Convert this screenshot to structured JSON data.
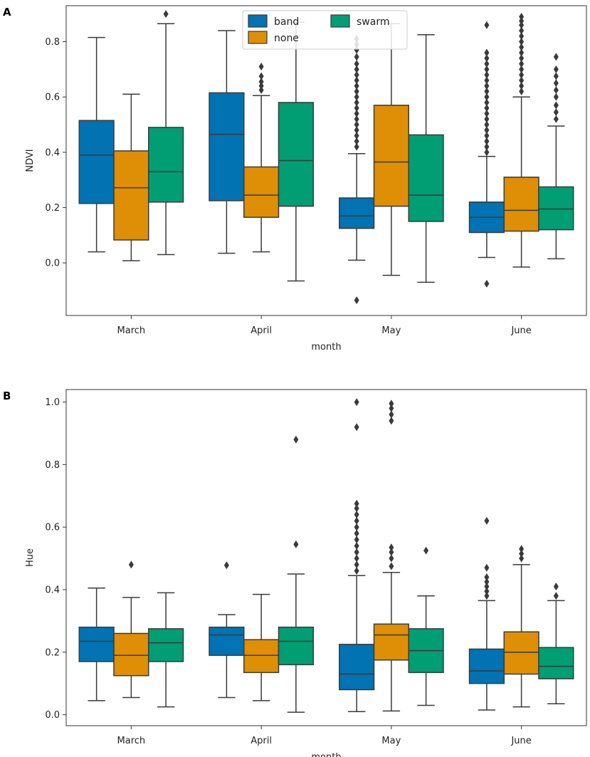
{
  "chart_data": [
    {
      "panel": "A",
      "type": "box",
      "xlabel": "month",
      "ylabel": "NDVI",
      "categories": [
        "March",
        "April",
        "May",
        "June"
      ],
      "ylim": [
        -0.19,
        0.93
      ],
      "yticks": [
        0.0,
        0.2,
        0.4,
        0.6,
        0.8
      ],
      "ytick_labels": [
        "0.0",
        "0.2",
        "0.4",
        "0.6",
        "0.8"
      ],
      "legend": {
        "position": "top-center",
        "entries": [
          "band",
          "none",
          "swarm"
        ]
      },
      "series": [
        {
          "name": "band",
          "color": "#0173b2",
          "boxes": [
            {
              "min": 0.04,
              "q1": 0.215,
              "median": 0.39,
              "q3": 0.515,
              "max": 0.815,
              "outliers": []
            },
            {
              "min": 0.035,
              "q1": 0.225,
              "median": 0.465,
              "q3": 0.615,
              "max": 0.84,
              "outliers": []
            },
            {
              "min": 0.01,
              "q1": 0.125,
              "median": 0.17,
              "q3": 0.235,
              "max": 0.395,
              "outliers": [
                -0.135,
                0.42,
                0.44,
                0.46,
                0.48,
                0.5,
                0.52,
                0.54,
                0.56,
                0.58,
                0.6,
                0.62,
                0.64,
                0.66,
                0.68,
                0.7,
                0.72,
                0.745,
                0.77,
                0.79,
                0.81
              ]
            },
            {
              "min": 0.02,
              "q1": 0.11,
              "median": 0.165,
              "q3": 0.22,
              "max": 0.385,
              "outliers": [
                -0.075,
                0.4,
                0.42,
                0.44,
                0.46,
                0.48,
                0.5,
                0.52,
                0.54,
                0.56,
                0.58,
                0.6,
                0.62,
                0.64,
                0.66,
                0.68,
                0.7,
                0.72,
                0.74,
                0.76,
                0.86
              ]
            }
          ]
        },
        {
          "name": "none",
          "color": "#de8f05",
          "boxes": [
            {
              "min": 0.008,
              "q1": 0.083,
              "median": 0.272,
              "q3": 0.405,
              "max": 0.61,
              "outliers": []
            },
            {
              "min": 0.04,
              "q1": 0.165,
              "median": 0.245,
              "q3": 0.347,
              "max": 0.605,
              "outliers": [
                0.625,
                0.64,
                0.655,
                0.675,
                0.71,
                0.82
              ]
            },
            {
              "min": -0.045,
              "q1": 0.205,
              "median": 0.365,
              "q3": 0.57,
              "max": 0.865,
              "outliers": []
            },
            {
              "min": -0.015,
              "q1": 0.115,
              "median": 0.19,
              "q3": 0.31,
              "max": 0.6,
              "outliers": [
                0.62,
                0.64,
                0.66,
                0.68,
                0.7,
                0.72,
                0.74,
                0.76,
                0.78,
                0.8,
                0.82,
                0.84,
                0.86,
                0.875,
                0.89
              ]
            }
          ]
        },
        {
          "name": "swarm",
          "color": "#029e73",
          "boxes": [
            {
              "min": 0.03,
              "q1": 0.22,
              "median": 0.33,
              "q3": 0.49,
              "max": 0.865,
              "outliers": [
                0.9
              ]
            },
            {
              "min": -0.065,
              "q1": 0.205,
              "median": 0.37,
              "q3": 0.58,
              "max": 0.87,
              "outliers": []
            },
            {
              "min": -0.07,
              "q1": 0.15,
              "median": 0.245,
              "q3": 0.463,
              "max": 0.825,
              "outliers": []
            },
            {
              "min": 0.015,
              "q1": 0.12,
              "median": 0.195,
              "q3": 0.275,
              "max": 0.495,
              "outliers": [
                0.52,
                0.545,
                0.57,
                0.6,
                0.625,
                0.65,
                0.675,
                0.7,
                0.745
              ]
            }
          ]
        }
      ]
    },
    {
      "panel": "B",
      "type": "box",
      "xlabel": "month",
      "ylabel": "Hue",
      "categories": [
        "March",
        "April",
        "May",
        "June"
      ],
      "ylim": [
        -0.035,
        1.04
      ],
      "yticks": [
        0.0,
        0.2,
        0.4,
        0.6,
        0.8,
        1.0
      ],
      "ytick_labels": [
        "0.0",
        "0.2",
        "0.4",
        "0.6",
        "0.8",
        "1.0"
      ],
      "series": [
        {
          "name": "band",
          "color": "#0173b2",
          "boxes": [
            {
              "min": 0.045,
              "q1": 0.17,
              "median": 0.235,
              "q3": 0.28,
              "max": 0.405,
              "outliers": []
            },
            {
              "min": 0.055,
              "q1": 0.19,
              "median": 0.255,
              "q3": 0.28,
              "max": 0.32,
              "outliers": [
                0.478
              ]
            },
            {
              "min": 0.01,
              "q1": 0.08,
              "median": 0.13,
              "q3": 0.225,
              "max": 0.445,
              "outliers": [
                0.46,
                0.48,
                0.5,
                0.52,
                0.54,
                0.56,
                0.58,
                0.6,
                0.62,
                0.64,
                0.66,
                0.675,
                0.92,
                1.0
              ]
            },
            {
              "min": 0.015,
              "q1": 0.1,
              "median": 0.14,
              "q3": 0.21,
              "max": 0.365,
              "outliers": [
                0.38,
                0.395,
                0.41,
                0.425,
                0.44,
                0.47,
                0.62
              ]
            }
          ]
        },
        {
          "name": "none",
          "color": "#de8f05",
          "boxes": [
            {
              "min": 0.055,
              "q1": 0.125,
              "median": 0.19,
              "q3": 0.26,
              "max": 0.375,
              "outliers": [
                0.48
              ]
            },
            {
              "min": 0.045,
              "q1": 0.135,
              "median": 0.19,
              "q3": 0.24,
              "max": 0.385,
              "outliers": []
            },
            {
              "min": 0.012,
              "q1": 0.175,
              "median": 0.255,
              "q3": 0.29,
              "max": 0.455,
              "outliers": [
                0.475,
                0.5,
                0.52,
                0.535,
                0.94,
                0.96,
                0.98,
                0.995
              ]
            },
            {
              "min": 0.025,
              "q1": 0.13,
              "median": 0.2,
              "q3": 0.265,
              "max": 0.48,
              "outliers": [
                0.5,
                0.515,
                0.53
              ]
            }
          ]
        },
        {
          "name": "swarm",
          "color": "#029e73",
          "boxes": [
            {
              "min": 0.025,
              "q1": 0.17,
              "median": 0.23,
              "q3": 0.275,
              "max": 0.39,
              "outliers": []
            },
            {
              "min": 0.008,
              "q1": 0.16,
              "median": 0.235,
              "q3": 0.28,
              "max": 0.45,
              "outliers": [
                0.545,
                0.88
              ]
            },
            {
              "min": 0.03,
              "q1": 0.135,
              "median": 0.205,
              "q3": 0.275,
              "max": 0.38,
              "outliers": [
                0.525
              ]
            },
            {
              "min": 0.035,
              "q1": 0.115,
              "median": 0.155,
              "q3": 0.215,
              "max": 0.365,
              "outliers": [
                0.38,
                0.41
              ]
            }
          ]
        }
      ]
    }
  ],
  "panel_labels": {
    "a": "A",
    "b": "B"
  }
}
